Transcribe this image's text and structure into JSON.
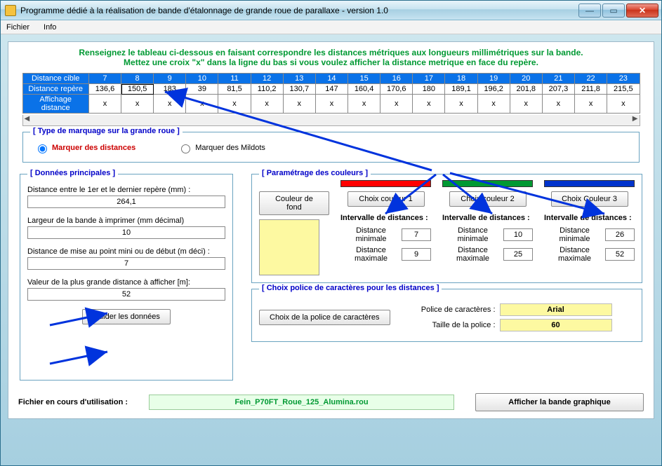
{
  "window": {
    "title": "Programme dédié à la réalisation de bande d'étalonnage de grande roue de parallaxe  -  version 1.0"
  },
  "menu": {
    "file": "Fichier",
    "info": "Info"
  },
  "instruction_line1": "Renseignez le tableau ci-dessous en faisant correspondre les distances métriques aux longueurs millimétriques sur la bande.",
  "instruction_line2": "Mettez une croix \"x\" dans la ligne du bas si vous voulez afficher la distance metrique en face du repère.",
  "table": {
    "row_headers": [
      "Distance cible",
      "Distance repère",
      "Affichage distance"
    ],
    "dist_cible": [
      "7",
      "8",
      "9",
      "10",
      "11",
      "12",
      "13",
      "14",
      "15",
      "16",
      "17",
      "18",
      "19",
      "20",
      "21",
      "22",
      "23"
    ],
    "dist_repere": [
      "136,6",
      "150,5",
      "183",
      "39",
      "81,5",
      "110,2",
      "130,7",
      "147",
      "160,4",
      "170,6",
      "180",
      "189,1",
      "196,2",
      "201,8",
      "207,3",
      "211,8",
      "215,5"
    ],
    "affichage": [
      "x",
      "x",
      "x",
      "x",
      "x",
      "x",
      "x",
      "x",
      "x",
      "x",
      "x",
      "x",
      "x",
      "x",
      "x",
      "x",
      "x"
    ],
    "selected_col": 1
  },
  "marking": {
    "legend": "[ Type de marquage sur la grande roue ]",
    "opt_dist": "Marquer des distances",
    "opt_mildots": "Marquer des Mildots",
    "selected": "dist"
  },
  "main_data": {
    "legend": "[ Données principales ]",
    "first_last_label": "Distance entre le 1er et le dernier repère (mm) :",
    "first_last_value": "264,1",
    "width_label": "Largeur de la bande à imprimer (mm décimal)",
    "width_value": "10",
    "focus_label": "Distance de mise au point  mini ou de début (m déci) :",
    "focus_value": "7",
    "maxdist_label": "Valeur de la plus grande distance à afficher  [m]:",
    "maxdist_value": "52",
    "validate": "Valider les données"
  },
  "colors": {
    "legend": "[ Paramétrage des couleurs ]",
    "bg_btn": "Couleur de fond",
    "bg_hex": "#fdf9a1",
    "c1": {
      "hex": "#ff0000",
      "btn": "Choix couleur 1",
      "min": "7",
      "max": "9"
    },
    "c2": {
      "hex": "#009933",
      "btn": "Choix couleur 2",
      "min": "10",
      "max": "25"
    },
    "c3": {
      "hex": "#0033cc",
      "btn": "Choix Couleur 3",
      "min": "26",
      "max": "52"
    },
    "intv_title": "Intervalle de distances :",
    "min_label": "Distance minimale",
    "max_label": "Distance maximale"
  },
  "font": {
    "legend": "[ Choix police de caractères pour les distances ]",
    "choose_btn": "Choix de la police de caractères",
    "name_label": "Police de caractères :",
    "name_value": "Arial",
    "size_label": "Taille de la police :",
    "size_value": "60"
  },
  "footer": {
    "label": "Fichier en cours d'utilisation :",
    "value": "Fein_P70FT_Roue_125_Alumina.rou",
    "show_btn": "Afficher la bande graphique"
  }
}
